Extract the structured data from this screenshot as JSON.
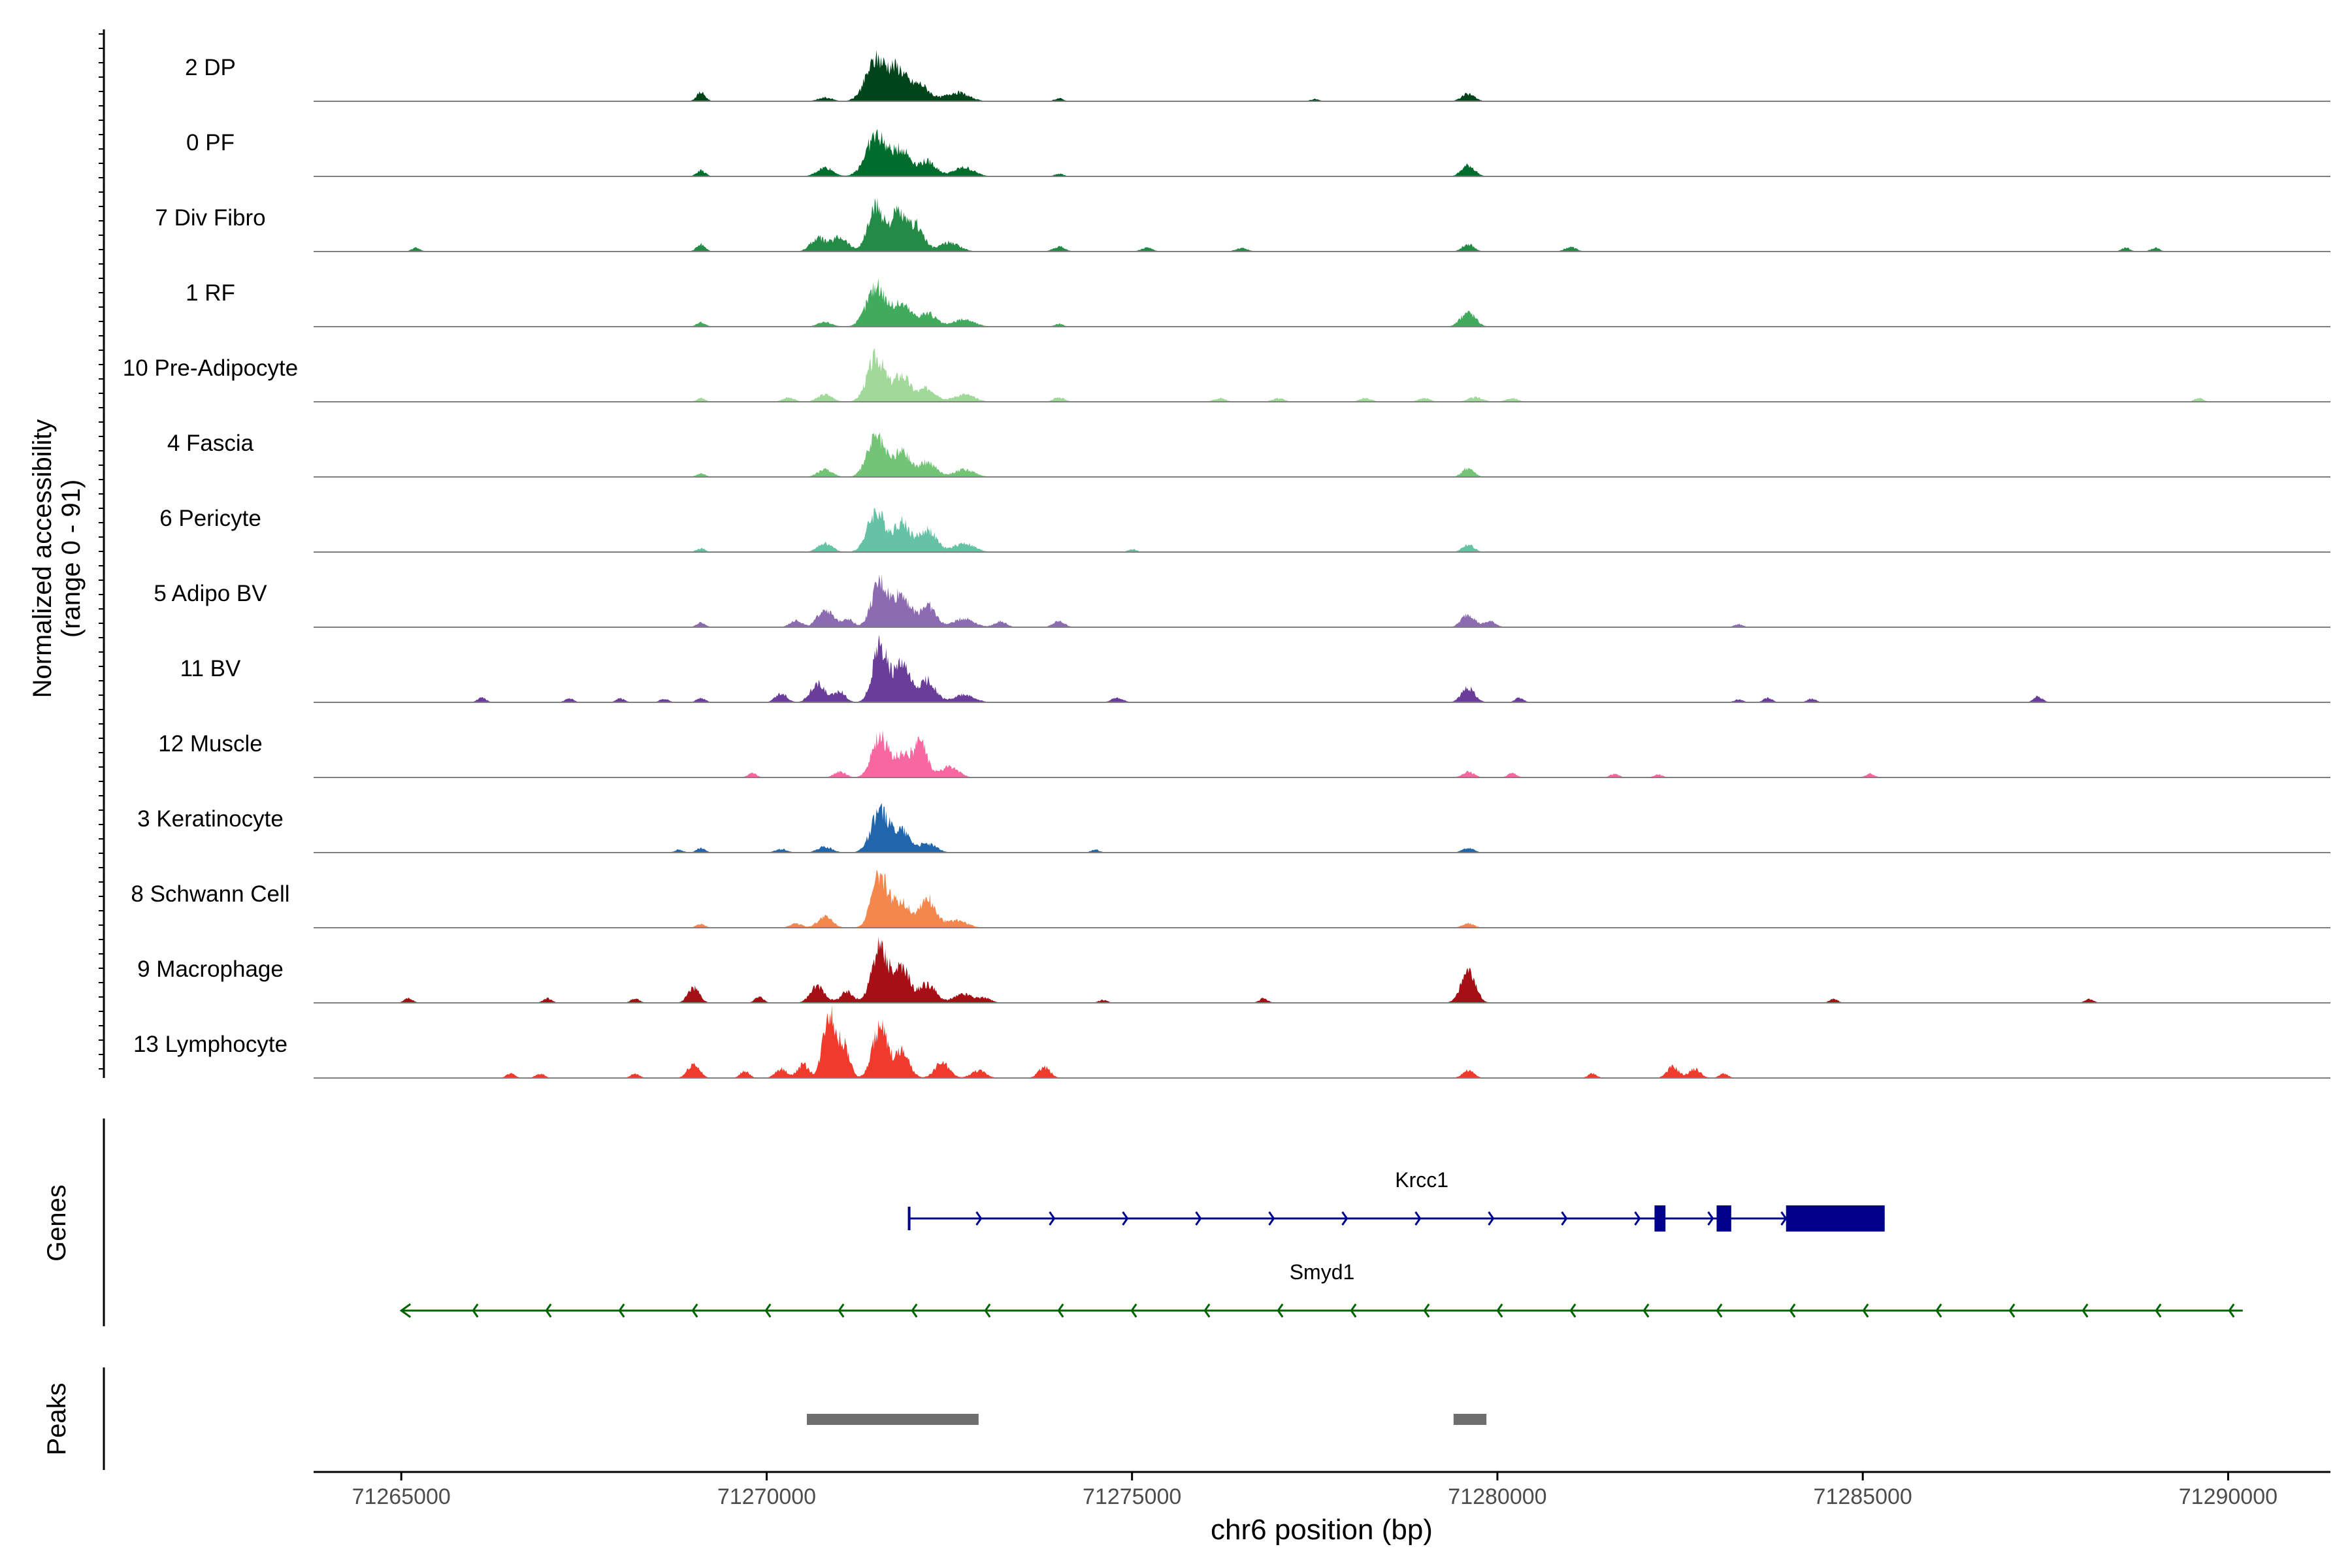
{
  "chart_data": {
    "type": "area",
    "genome": {
      "chromosome": "chr6",
      "xlim": [
        71263800,
        71291400
      ],
      "xlabel": "chr6 position (bp)",
      "xticks": [
        71265000,
        71270000,
        71275000,
        71280000,
        71285000,
        71290000
      ],
      "xtick_labels": [
        "71265000",
        "71270000",
        "71275000",
        "71280000",
        "71285000",
        "71290000"
      ]
    },
    "coverage": {
      "ylabel_line1": "Normalized accessibility",
      "ylabel_line2": "(range 0 - 91)",
      "ylim": [
        0,
        91
      ],
      "tracks": [
        {
          "name": "2 DP",
          "color": "#00441b",
          "scale": 0.5,
          "peaks": [
            [
              71269100,
              0.12,
              60
            ],
            [
              71270800,
              0.05,
              100
            ],
            [
              71271500,
              0.55,
              140
            ],
            [
              71271800,
              0.4,
              120
            ],
            [
              71272100,
              0.22,
              120
            ],
            [
              71272600,
              0.12,
              160
            ],
            [
              71279600,
              0.1,
              90
            ],
            [
              71274000,
              0.04,
              60
            ],
            [
              71277500,
              0.03,
              60
            ]
          ]
        },
        {
          "name": "0 PF",
          "color": "#006d2c",
          "scale": 0.55,
          "peaks": [
            [
              71269100,
              0.08,
              60
            ],
            [
              71270800,
              0.12,
              110
            ],
            [
              71271500,
              0.55,
              140
            ],
            [
              71271850,
              0.35,
              120
            ],
            [
              71272200,
              0.2,
              120
            ],
            [
              71272700,
              0.12,
              140
            ],
            [
              71279600,
              0.15,
              90
            ],
            [
              71274000,
              0.04,
              60
            ]
          ]
        },
        {
          "name": "7 Div Fibro",
          "color": "#238b45",
          "scale": 0.72,
          "peaks": [
            [
              71265200,
              0.05,
              60
            ],
            [
              71269100,
              0.1,
              60
            ],
            [
              71270700,
              0.18,
              100
            ],
            [
              71271000,
              0.2,
              110
            ],
            [
              71271500,
              0.6,
              110
            ],
            [
              71271800,
              0.5,
              100
            ],
            [
              71272050,
              0.35,
              100
            ],
            [
              71272500,
              0.12,
              140
            ],
            [
              71274000,
              0.07,
              80
            ],
            [
              71275200,
              0.05,
              80
            ],
            [
              71276500,
              0.05,
              80
            ],
            [
              71279600,
              0.1,
              80
            ],
            [
              71281000,
              0.06,
              80
            ],
            [
              71288600,
              0.05,
              60
            ],
            [
              71289000,
              0.05,
              60
            ]
          ]
        },
        {
          "name": "1 RF",
          "color": "#41ab5d",
          "scale": 0.55,
          "peaks": [
            [
              71269100,
              0.06,
              60
            ],
            [
              71270800,
              0.06,
              100
            ],
            [
              71271500,
              0.55,
              130
            ],
            [
              71271850,
              0.3,
              120
            ],
            [
              71272200,
              0.18,
              120
            ],
            [
              71272700,
              0.1,
              140
            ],
            [
              71279600,
              0.2,
              100
            ],
            [
              71274000,
              0.04,
              60
            ]
          ]
        },
        {
          "name": "10 Pre-Adipocyte",
          "color": "#a1d99b",
          "scale": 0.6,
          "peaks": [
            [
              71269100,
              0.05,
              60
            ],
            [
              71270300,
              0.06,
              80
            ],
            [
              71270800,
              0.1,
              100
            ],
            [
              71271500,
              0.6,
              120
            ],
            [
              71271850,
              0.35,
              110
            ],
            [
              71272200,
              0.18,
              120
            ],
            [
              71272700,
              0.1,
              140
            ],
            [
              71274000,
              0.06,
              80
            ],
            [
              71276200,
              0.05,
              80
            ],
            [
              71277000,
              0.05,
              80
            ],
            [
              71278200,
              0.05,
              80
            ],
            [
              71279000,
              0.05,
              80
            ],
            [
              71279700,
              0.06,
              100
            ],
            [
              71280200,
              0.05,
              80
            ],
            [
              71289600,
              0.05,
              60
            ]
          ]
        },
        {
          "name": "4 Fascia",
          "color": "#74c476",
          "scale": 0.55,
          "peaks": [
            [
              71269100,
              0.05,
              60
            ],
            [
              71270800,
              0.1,
              100
            ],
            [
              71271500,
              0.55,
              120
            ],
            [
              71271850,
              0.35,
              110
            ],
            [
              71272200,
              0.2,
              120
            ],
            [
              71272700,
              0.1,
              140
            ],
            [
              71279600,
              0.12,
              80
            ]
          ]
        },
        {
          "name": "6 Pericyte",
          "color": "#66c2a4",
          "scale": 0.55,
          "peaks": [
            [
              71269100,
              0.05,
              60
            ],
            [
              71270800,
              0.12,
              100
            ],
            [
              71271500,
              0.55,
              120
            ],
            [
              71271850,
              0.4,
              110
            ],
            [
              71272200,
              0.3,
              120
            ],
            [
              71272700,
              0.12,
              140
            ],
            [
              71279600,
              0.1,
              80
            ],
            [
              71275000,
              0.04,
              60
            ]
          ]
        },
        {
          "name": "5 Adipo BV",
          "color": "#8c6bb1",
          "scale": 0.75,
          "peaks": [
            [
              71269100,
              0.06,
              60
            ],
            [
              71270400,
              0.1,
              80
            ],
            [
              71270800,
              0.25,
              100
            ],
            [
              71271100,
              0.12,
              80
            ],
            [
              71271550,
              0.6,
              110
            ],
            [
              71271850,
              0.45,
              110
            ],
            [
              71272200,
              0.3,
              110
            ],
            [
              71272700,
              0.12,
              140
            ],
            [
              71273200,
              0.08,
              80
            ],
            [
              71274000,
              0.08,
              80
            ],
            [
              71279600,
              0.18,
              90
            ],
            [
              71279900,
              0.08,
              80
            ],
            [
              71283300,
              0.04,
              60
            ]
          ]
        },
        {
          "name": "11 BV",
          "color": "#6a3d9a",
          "scale": 0.85,
          "peaks": [
            [
              71266100,
              0.06,
              60
            ],
            [
              71267300,
              0.05,
              60
            ],
            [
              71268000,
              0.05,
              60
            ],
            [
              71268600,
              0.05,
              60
            ],
            [
              71269100,
              0.06,
              60
            ],
            [
              71270200,
              0.12,
              80
            ],
            [
              71270700,
              0.25,
              100
            ],
            [
              71271000,
              0.15,
              80
            ],
            [
              71271550,
              0.75,
              100
            ],
            [
              71271850,
              0.5,
              110
            ],
            [
              71272200,
              0.3,
              110
            ],
            [
              71272700,
              0.1,
              140
            ],
            [
              71274800,
              0.06,
              80
            ],
            [
              71279600,
              0.2,
              90
            ],
            [
              71280300,
              0.06,
              60
            ],
            [
              71283300,
              0.04,
              60
            ],
            [
              71283700,
              0.06,
              60
            ],
            [
              71284300,
              0.05,
              60
            ],
            [
              71287400,
              0.08,
              60
            ]
          ]
        },
        {
          "name": "12 Muscle",
          "color": "#f768a1",
          "scale": 0.55,
          "peaks": [
            [
              71269800,
              0.06,
              60
            ],
            [
              71271000,
              0.08,
              80
            ],
            [
              71271550,
              0.55,
              110
            ],
            [
              71271850,
              0.3,
              100
            ],
            [
              71272100,
              0.45,
              100
            ],
            [
              71272500,
              0.15,
              120
            ],
            [
              71279600,
              0.08,
              80
            ],
            [
              71280200,
              0.06,
              60
            ],
            [
              71281600,
              0.05,
              60
            ],
            [
              71282200,
              0.04,
              60
            ],
            [
              71285100,
              0.05,
              60
            ]
          ]
        },
        {
          "name": "3 Keratinocyte",
          "color": "#2166ac",
          "scale": 0.55,
          "peaks": [
            [
              71268800,
              0.04,
              60
            ],
            [
              71269100,
              0.06,
              60
            ],
            [
              71270200,
              0.05,
              80
            ],
            [
              71270800,
              0.08,
              100
            ],
            [
              71271550,
              0.55,
              120
            ],
            [
              71271850,
              0.3,
              110
            ],
            [
              71272200,
              0.12,
              120
            ],
            [
              71279600,
              0.06,
              80
            ],
            [
              71274500,
              0.04,
              60
            ]
          ]
        },
        {
          "name": "8 Schwann Cell",
          "color": "#f4874b",
          "scale": 0.65,
          "peaks": [
            [
              71269100,
              0.05,
              60
            ],
            [
              71270400,
              0.06,
              80
            ],
            [
              71270800,
              0.15,
              100
            ],
            [
              71271550,
              0.7,
              110
            ],
            [
              71271850,
              0.35,
              110
            ],
            [
              71272200,
              0.4,
              110
            ],
            [
              71272600,
              0.1,
              140
            ],
            [
              71279600,
              0.06,
              80
            ]
          ]
        },
        {
          "name": "9 Macrophage",
          "color": "#a50f15",
          "scale": 0.75,
          "peaks": [
            [
              71265100,
              0.06,
              60
            ],
            [
              71267000,
              0.06,
              60
            ],
            [
              71268200,
              0.06,
              60
            ],
            [
              71269000,
              0.2,
              80
            ],
            [
              71269900,
              0.08,
              60
            ],
            [
              71270700,
              0.22,
              100
            ],
            [
              71271100,
              0.15,
              90
            ],
            [
              71271550,
              0.75,
              110
            ],
            [
              71271850,
              0.45,
              110
            ],
            [
              71272200,
              0.25,
              110
            ],
            [
              71272700,
              0.12,
              140
            ],
            [
              71273000,
              0.06,
              80
            ],
            [
              71274600,
              0.04,
              60
            ],
            [
              71276800,
              0.06,
              60
            ],
            [
              71279600,
              0.4,
              100
            ],
            [
              71284600,
              0.05,
              60
            ],
            [
              71288100,
              0.05,
              60
            ]
          ]
        },
        {
          "name": "13 Lymphocyte",
          "color": "#ef3b2c",
          "scale": 1.0,
          "peaks": [
            [
              71266500,
              0.06,
              60
            ],
            [
              71266900,
              0.06,
              60
            ],
            [
              71268200,
              0.06,
              60
            ],
            [
              71269000,
              0.2,
              80
            ],
            [
              71269700,
              0.1,
              60
            ],
            [
              71270200,
              0.12,
              80
            ],
            [
              71270500,
              0.18,
              80
            ],
            [
              71270850,
              0.9,
              80
            ],
            [
              71271050,
              0.45,
              80
            ],
            [
              71271550,
              0.7,
              100
            ],
            [
              71271850,
              0.35,
              100
            ],
            [
              71272400,
              0.2,
              100
            ],
            [
              71272900,
              0.1,
              100
            ],
            [
              71273800,
              0.15,
              80
            ],
            [
              71279600,
              0.1,
              80
            ],
            [
              71281300,
              0.06,
              60
            ],
            [
              71282400,
              0.15,
              80
            ],
            [
              71282700,
              0.12,
              80
            ],
            [
              71283100,
              0.06,
              60
            ]
          ]
        }
      ]
    },
    "genes": {
      "label": "Genes",
      "items": [
        {
          "name": "Krcc1",
          "strand": "+",
          "start": 71271950,
          "end": 71285300,
          "color": "#00008b",
          "exons": [
            [
              71271950,
              71272010
            ],
            [
              71282150,
              71282300
            ],
            [
              71283000,
              71283200
            ],
            [
              71283950,
              71285300
            ]
          ]
        },
        {
          "name": "Smyd1",
          "strand": "-",
          "start": 71265000,
          "end": 71290200,
          "color": "#006400",
          "exons": []
        }
      ]
    },
    "peaks": {
      "label": "Peaks",
      "color": "#6e6e6e",
      "regions": [
        [
          71270550,
          71272900
        ],
        [
          71279400,
          71279850
        ]
      ]
    }
  }
}
